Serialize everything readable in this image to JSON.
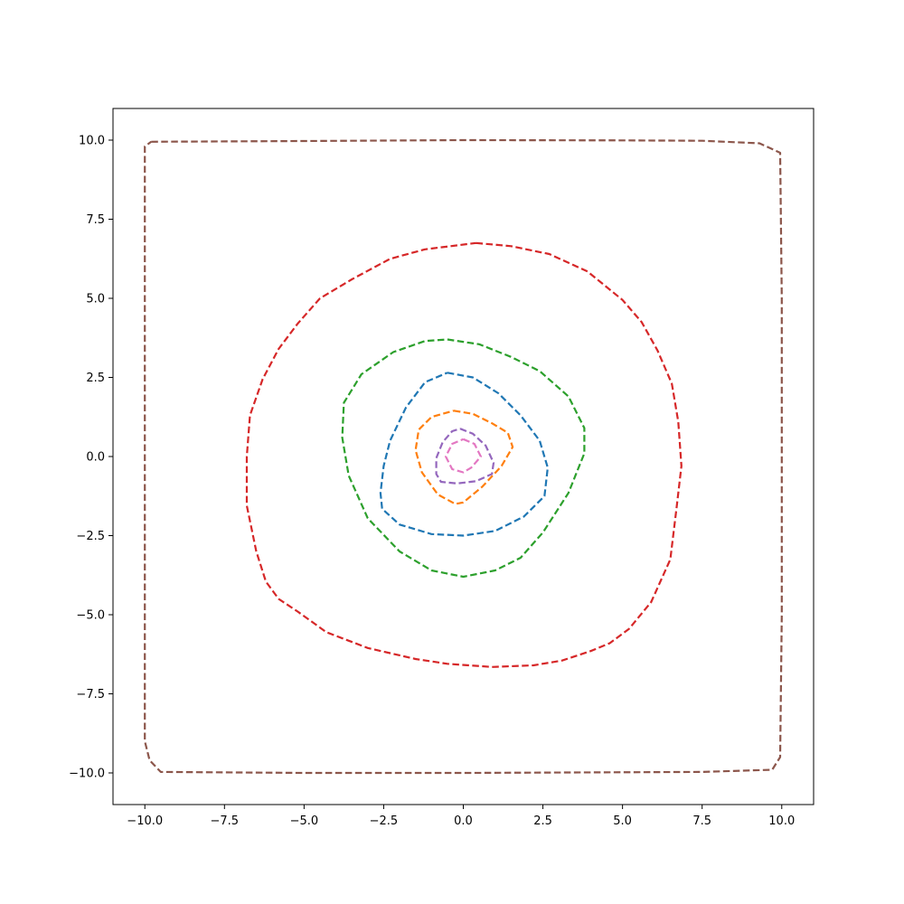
{
  "chart_data": {
    "type": "line",
    "title": "",
    "xlabel": "",
    "ylabel": "",
    "xlim": [
      -11,
      11
    ],
    "ylim": [
      -11,
      11
    ],
    "grid": false,
    "legend": "none",
    "line_style": "dashed",
    "xticks": [
      -10.0,
      -7.5,
      -5.0,
      -2.5,
      0.0,
      2.5,
      5.0,
      7.5,
      10.0
    ],
    "xtick_labels": [
      "−10.0",
      "−7.5",
      "−5.0",
      "−2.5",
      "0.0",
      "2.5",
      "5.0",
      "7.5",
      "10.0"
    ],
    "yticks": [
      10.0,
      7.5,
      5.0,
      2.5,
      0.0,
      -2.5,
      -5.0,
      -7.5,
      -10.0
    ],
    "ytick_labels": [
      "10.0",
      "7.5",
      "5.0",
      "2.5",
      "0.0",
      "−2.5",
      "−5.0",
      "−7.5",
      "−10.0"
    ],
    "series": [
      {
        "color": "#1f77b4",
        "points": [
          [
            -0.5,
            2.65
          ],
          [
            0.3,
            2.5
          ],
          [
            1.1,
            2.0
          ],
          [
            1.8,
            1.3
          ],
          [
            2.4,
            0.5
          ],
          [
            2.65,
            -0.35
          ],
          [
            2.55,
            -1.25
          ],
          [
            1.9,
            -1.9
          ],
          [
            1.0,
            -2.35
          ],
          [
            0.0,
            -2.5
          ],
          [
            -1.0,
            -2.45
          ],
          [
            -2.0,
            -2.15
          ],
          [
            -2.55,
            -1.65
          ],
          [
            -2.6,
            -1.15
          ],
          [
            -2.5,
            -0.3
          ],
          [
            -2.3,
            0.5
          ],
          [
            -1.8,
            1.55
          ],
          [
            -1.2,
            2.35
          ],
          [
            -0.5,
            2.65
          ]
        ]
      },
      {
        "color": "#ff7f0e",
        "points": [
          [
            -0.3,
            1.45
          ],
          [
            0.3,
            1.35
          ],
          [
            0.9,
            1.05
          ],
          [
            1.4,
            0.75
          ],
          [
            1.55,
            0.3
          ],
          [
            1.2,
            -0.3
          ],
          [
            0.6,
            -0.95
          ],
          [
            0.0,
            -1.45
          ],
          [
            -0.25,
            -1.5
          ],
          [
            -0.8,
            -1.2
          ],
          [
            -1.3,
            -0.5
          ],
          [
            -1.5,
            0.2
          ],
          [
            -1.4,
            0.85
          ],
          [
            -1.0,
            1.25
          ],
          [
            -0.3,
            1.45
          ]
        ]
      },
      {
        "color": "#2ca02c",
        "points": [
          [
            -0.5,
            3.7
          ],
          [
            0.5,
            3.55
          ],
          [
            1.5,
            3.15
          ],
          [
            2.4,
            2.7
          ],
          [
            3.3,
            1.9
          ],
          [
            3.8,
            0.9
          ],
          [
            3.8,
            0.1
          ],
          [
            3.3,
            -1.15
          ],
          [
            2.5,
            -2.4
          ],
          [
            1.8,
            -3.2
          ],
          [
            1.0,
            -3.6
          ],
          [
            0.0,
            -3.8
          ],
          [
            -1.0,
            -3.6
          ],
          [
            -2.0,
            -3.0
          ],
          [
            -3.0,
            -1.95
          ],
          [
            -3.6,
            -0.6
          ],
          [
            -3.8,
            0.6
          ],
          [
            -3.75,
            1.7
          ],
          [
            -3.2,
            2.6
          ],
          [
            -2.2,
            3.3
          ],
          [
            -1.2,
            3.65
          ],
          [
            -0.5,
            3.7
          ]
        ]
      },
      {
        "color": "#d62728",
        "points": [
          [
            0.4,
            6.75
          ],
          [
            1.5,
            6.65
          ],
          [
            2.7,
            6.4
          ],
          [
            3.9,
            5.85
          ],
          [
            5.0,
            4.95
          ],
          [
            5.6,
            4.25
          ],
          [
            6.1,
            3.35
          ],
          [
            6.55,
            2.3
          ],
          [
            6.75,
            1.1
          ],
          [
            6.85,
            -0.3
          ],
          [
            6.7,
            -1.6
          ],
          [
            6.5,
            -3.25
          ],
          [
            5.9,
            -4.6
          ],
          [
            5.2,
            -5.45
          ],
          [
            4.6,
            -5.9
          ],
          [
            4.0,
            -6.15
          ],
          [
            3.1,
            -6.45
          ],
          [
            2.2,
            -6.6
          ],
          [
            0.9,
            -6.65
          ],
          [
            -0.5,
            -6.55
          ],
          [
            -1.5,
            -6.4
          ],
          [
            -3.0,
            -6.05
          ],
          [
            -4.3,
            -5.55
          ],
          [
            -5.2,
            -4.9
          ],
          [
            -5.8,
            -4.5
          ],
          [
            -6.2,
            -3.95
          ],
          [
            -6.5,
            -3.0
          ],
          [
            -6.8,
            -1.55
          ],
          [
            -6.8,
            0.0
          ],
          [
            -6.7,
            1.3
          ],
          [
            -6.3,
            2.45
          ],
          [
            -5.8,
            3.4
          ],
          [
            -5.2,
            4.2
          ],
          [
            -4.5,
            5.0
          ],
          [
            -3.5,
            5.6
          ],
          [
            -2.3,
            6.25
          ],
          [
            -1.2,
            6.55
          ],
          [
            0.4,
            6.75
          ]
        ]
      },
      {
        "color": "#9467bd",
        "points": [
          [
            -0.1,
            0.88
          ],
          [
            0.3,
            0.72
          ],
          [
            0.7,
            0.35
          ],
          [
            0.95,
            -0.2
          ],
          [
            0.9,
            -0.55
          ],
          [
            0.4,
            -0.78
          ],
          [
            -0.2,
            -0.85
          ],
          [
            -0.7,
            -0.8
          ],
          [
            -0.85,
            -0.55
          ],
          [
            -0.85,
            -0.05
          ],
          [
            -0.65,
            0.45
          ],
          [
            -0.35,
            0.8
          ],
          [
            -0.1,
            0.88
          ]
        ]
      },
      {
        "color": "#8c564b",
        "points": [
          [
            -9.8,
            9.95
          ],
          [
            -5.0,
            9.97
          ],
          [
            0.0,
            10.0
          ],
          [
            5.0,
            9.99
          ],
          [
            7.5,
            9.98
          ],
          [
            9.3,
            9.9
          ],
          [
            9.95,
            9.6
          ],
          [
            10.0,
            5.0
          ],
          [
            10.0,
            0.0
          ],
          [
            10.0,
            -5.0
          ],
          [
            9.95,
            -9.5
          ],
          [
            9.7,
            -9.9
          ],
          [
            7.5,
            -9.97
          ],
          [
            0.0,
            -10.0
          ],
          [
            -5.0,
            -10.0
          ],
          [
            -9.5,
            -9.97
          ],
          [
            -9.85,
            -9.6
          ],
          [
            -10.0,
            -9.0
          ],
          [
            -10.0,
            0.0
          ],
          [
            -10.0,
            5.0
          ],
          [
            -10.0,
            9.8
          ],
          [
            -9.8,
            9.95
          ]
        ]
      },
      {
        "color": "#e377c2",
        "points": [
          [
            0.0,
            0.55
          ],
          [
            0.35,
            0.4
          ],
          [
            0.55,
            0.0
          ],
          [
            0.25,
            -0.35
          ],
          [
            0.0,
            -0.5
          ],
          [
            -0.35,
            -0.4
          ],
          [
            -0.55,
            0.0
          ],
          [
            -0.35,
            0.4
          ],
          [
            0.0,
            0.55
          ]
        ]
      }
    ]
  }
}
